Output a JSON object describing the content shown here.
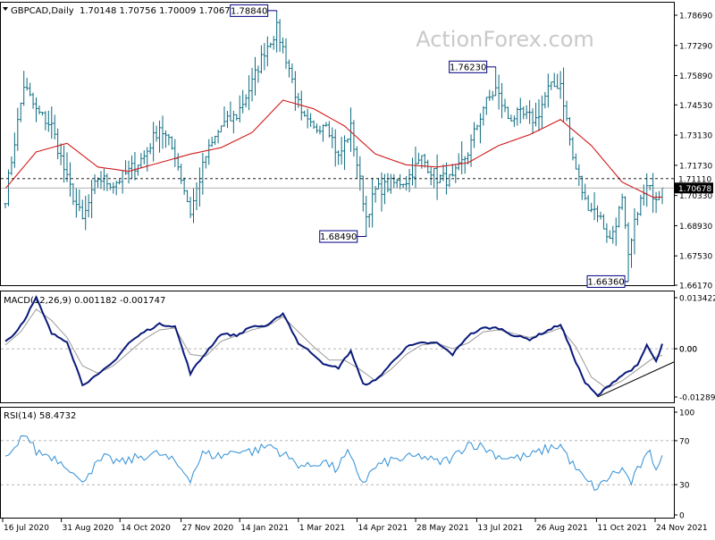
{
  "header": {
    "symbol": "GBPCAD,Daily",
    "ohlc": "1.70148 1.70756 1.70009 1.70678",
    "watermark": "ActionForex.com"
  },
  "colors": {
    "grid_line": "#000000",
    "price_bars": "#0b6b80",
    "moving_average": "#d11a1a",
    "macd_line": "#0a1a7a",
    "macd_signal": "#9a9a9a",
    "rsi_line": "#2f8fd8",
    "label_border": "#000080",
    "current_price_bg": "#000000",
    "current_price_text": "#ffffff",
    "watermark": "#c9c9c9"
  },
  "chart_data": [
    {
      "type": "ohlc",
      "panel": "price",
      "y_axis_ticks": [
        "1.78690",
        "1.77290",
        "1.75890",
        "1.74530",
        "1.73130",
        "1.71730",
        "1.70330",
        "1.68930",
        "1.67530",
        "1.66170"
      ],
      "ylim": [
        1.6617,
        1.7927
      ],
      "price_labels": [
        {
          "name": "high-jan-2021",
          "text": "1.78840",
          "x_index": 88,
          "value": 1.7884
        },
        {
          "name": "low-apr-2021",
          "text": "1.68490",
          "x_index": 117,
          "value": 1.6849
        },
        {
          "name": "high-jul-2021",
          "text": "1.76230",
          "x_index": 159,
          "value": 1.7623
        },
        {
          "name": "low-dec-2021",
          "text": "1.66360",
          "x_index": 202,
          "value": 1.6636
        }
      ],
      "resistance_line": {
        "value": 1.7111,
        "label": "1.71110"
      },
      "current_price": {
        "value": 1.70678,
        "label": "1.70678"
      },
      "moving_average_anchors": [
        [
          0,
          1.7065
        ],
        [
          10,
          1.7235
        ],
        [
          20,
          1.7275
        ],
        [
          30,
          1.7165
        ],
        [
          40,
          1.7145
        ],
        [
          50,
          1.7185
        ],
        [
          60,
          1.7225
        ],
        [
          70,
          1.7255
        ],
        [
          80,
          1.7325
        ],
        [
          90,
          1.7475
        ],
        [
          100,
          1.7435
        ],
        [
          110,
          1.7355
        ],
        [
          120,
          1.7225
        ],
        [
          130,
          1.7175
        ],
        [
          140,
          1.7165
        ],
        [
          150,
          1.7185
        ],
        [
          160,
          1.7265
        ],
        [
          170,
          1.7315
        ],
        [
          180,
          1.7385
        ],
        [
          190,
          1.7265
        ],
        [
          200,
          1.7095
        ],
        [
          210,
          1.7025
        ]
      ],
      "price_anchors": [
        [
          0,
          1.7025
        ],
        [
          6,
          1.7545
        ],
        [
          10,
          1.7425
        ],
        [
          15,
          1.7355
        ],
        [
          20,
          1.7105
        ],
        [
          25,
          1.6915
        ],
        [
          30,
          1.7115
        ],
        [
          35,
          1.7085
        ],
        [
          40,
          1.7145
        ],
        [
          45,
          1.7215
        ],
        [
          50,
          1.7355
        ],
        [
          55,
          1.7225
        ],
        [
          60,
          1.6955
        ],
        [
          65,
          1.7215
        ],
        [
          70,
          1.7355
        ],
        [
          75,
          1.7405
        ],
        [
          80,
          1.7555
        ],
        [
          84,
          1.7705
        ],
        [
          88,
          1.7805
        ],
        [
          92,
          1.7625
        ],
        [
          96,
          1.7395
        ],
        [
          100,
          1.7335
        ],
        [
          104,
          1.7385
        ],
        [
          108,
          1.7205
        ],
        [
          112,
          1.7345
        ],
        [
          117,
          1.6935
        ],
        [
          120,
          1.7055
        ],
        [
          125,
          1.7085
        ],
        [
          130,
          1.7105
        ],
        [
          135,
          1.7205
        ],
        [
          140,
          1.7115
        ],
        [
          145,
          1.7105
        ],
        [
          150,
          1.7235
        ],
        [
          155,
          1.7445
        ],
        [
          159,
          1.7525
        ],
        [
          163,
          1.7395
        ],
        [
          167,
          1.7405
        ],
        [
          172,
          1.7385
        ],
        [
          176,
          1.7525
        ],
        [
          180,
          1.7555
        ],
        [
          184,
          1.7205
        ],
        [
          188,
          1.7005
        ],
        [
          192,
          1.6955
        ],
        [
          196,
          1.6825
        ],
        [
          200,
          1.7005
        ],
        [
          202,
          1.6735
        ],
        [
          205,
          1.6975
        ],
        [
          208,
          1.7065
        ],
        [
          211,
          1.7035
        ],
        [
          213,
          1.7067
        ]
      ]
    },
    {
      "type": "line",
      "panel": "macd",
      "label": "MACD(12,26,9) 0.001182 -0.001747",
      "y_axis_ticks": [
        "0.013422",
        "0.00",
        "0.00",
        "-0.012891"
      ],
      "ylim": [
        -0.0142,
        0.0152
      ],
      "macd_anchors": [
        [
          0,
          0.002
        ],
        [
          3,
          0.004
        ],
        [
          6,
          0.0075
        ],
        [
          10,
          0.0135
        ],
        [
          15,
          0.004
        ],
        [
          20,
          0.002
        ],
        [
          25,
          -0.0095
        ],
        [
          30,
          -0.007
        ],
        [
          35,
          -0.0035
        ],
        [
          40,
          0.0015
        ],
        [
          45,
          0.0045
        ],
        [
          50,
          0.0065
        ],
        [
          55,
          0.006
        ],
        [
          60,
          -0.0065
        ],
        [
          65,
          -0.001
        ],
        [
          70,
          0.004
        ],
        [
          75,
          0.0035
        ],
        [
          80,
          0.006
        ],
        [
          85,
          0.006
        ],
        [
          90,
          0.0095
        ],
        [
          95,
          0.0015
        ],
        [
          100,
          -0.0015
        ],
        [
          104,
          -0.0045
        ],
        [
          108,
          -0.005
        ],
        [
          112,
          -0.0005
        ],
        [
          116,
          -0.0095
        ],
        [
          120,
          -0.0085
        ],
        [
          125,
          -0.004
        ],
        [
          130,
          0.0005
        ],
        [
          135,
          0.0015
        ],
        [
          140,
          0.0015
        ],
        [
          145,
          -0.0015
        ],
        [
          150,
          0.0035
        ],
        [
          155,
          0.0055
        ],
        [
          160,
          0.0055
        ],
        [
          165,
          0.0035
        ],
        [
          170,
          0.0025
        ],
        [
          175,
          0.0045
        ],
        [
          180,
          0.0065
        ],
        [
          185,
          -0.0035
        ],
        [
          188,
          -0.009
        ],
        [
          192,
          -0.0125
        ],
        [
          196,
          -0.0095
        ],
        [
          200,
          -0.007
        ],
        [
          205,
          -0.0045
        ],
        [
          208,
          0.001
        ],
        [
          211,
          -0.0035
        ],
        [
          213,
          0.0012
        ]
      ],
      "signal_anchors": [
        [
          0,
          0.001
        ],
        [
          5,
          0.0045
        ],
        [
          10,
          0.0105
        ],
        [
          15,
          0.0075
        ],
        [
          20,
          0.003
        ],
        [
          25,
          -0.0045
        ],
        [
          30,
          -0.0065
        ],
        [
          35,
          -0.0045
        ],
        [
          40,
          -0.001
        ],
        [
          45,
          0.0025
        ],
        [
          50,
          0.005
        ],
        [
          55,
          0.0055
        ],
        [
          60,
          -0.0015
        ],
        [
          65,
          -0.002
        ],
        [
          70,
          0.002
        ],
        [
          75,
          0.0035
        ],
        [
          80,
          0.005
        ],
        [
          85,
          0.006
        ],
        [
          90,
          0.0085
        ],
        [
          95,
          0.0045
        ],
        [
          100,
          0.0005
        ],
        [
          105,
          -0.003
        ],
        [
          110,
          -0.003
        ],
        [
          115,
          -0.0055
        ],
        [
          120,
          -0.0085
        ],
        [
          125,
          -0.0055
        ],
        [
          130,
          -0.0015
        ],
        [
          135,
          0.001
        ],
        [
          140,
          0.0015
        ],
        [
          145,
          0.0
        ],
        [
          150,
          0.0015
        ],
        [
          155,
          0.0045
        ],
        [
          160,
          0.005
        ],
        [
          165,
          0.004
        ],
        [
          170,
          0.003
        ],
        [
          175,
          0.004
        ],
        [
          180,
          0.0055
        ],
        [
          185,
          0.0005
        ],
        [
          190,
          -0.0075
        ],
        [
          195,
          -0.0105
        ],
        [
          200,
          -0.0085
        ],
        [
          205,
          -0.0055
        ],
        [
          210,
          -0.0025
        ],
        [
          213,
          -0.0017
        ]
      ],
      "trendline": [
        [
          192,
          -0.0128
        ],
        [
          213,
          -0.0035
        ]
      ]
    },
    {
      "type": "line",
      "panel": "rsi",
      "label": "RSI(14) 58.4732",
      "y_axis_ticks": [
        "100",
        "70",
        "30",
        "0"
      ],
      "ylim": [
        0,
        100
      ],
      "levels": [
        70,
        30
      ],
      "rsi_anchors": [
        [
          0,
          52
        ],
        [
          4,
          64
        ],
        [
          6,
          78
        ],
        [
          10,
          60
        ],
        [
          15,
          56
        ],
        [
          20,
          48
        ],
        [
          24,
          32
        ],
        [
          28,
          44
        ],
        [
          32,
          54
        ],
        [
          38,
          50
        ],
        [
          44,
          56
        ],
        [
          50,
          58
        ],
        [
          55,
          50
        ],
        [
          60,
          36
        ],
        [
          64,
          58
        ],
        [
          70,
          56
        ],
        [
          76,
          62
        ],
        [
          80,
          60
        ],
        [
          86,
          66
        ],
        [
          90,
          58
        ],
        [
          94,
          50
        ],
        [
          98,
          46
        ],
        [
          103,
          52
        ],
        [
          107,
          44
        ],
        [
          111,
          58
        ],
        [
          116,
          32
        ],
        [
          120,
          46
        ],
        [
          125,
          52
        ],
        [
          130,
          54
        ],
        [
          135,
          56
        ],
        [
          140,
          50
        ],
        [
          145,
          54
        ],
        [
          150,
          68
        ],
        [
          155,
          64
        ],
        [
          160,
          56
        ],
        [
          165,
          54
        ],
        [
          170,
          56
        ],
        [
          175,
          62
        ],
        [
          180,
          66
        ],
        [
          184,
          48
        ],
        [
          188,
          34
        ],
        [
          192,
          26
        ],
        [
          196,
          38
        ],
        [
          200,
          44
        ],
        [
          203,
          32
        ],
        [
          206,
          48
        ],
        [
          209,
          58
        ],
        [
          211,
          46
        ],
        [
          213,
          58
        ]
      ]
    }
  ],
  "x_axis": {
    "labels": [
      {
        "text": "16 Jul 2020",
        "x_index": 0
      },
      {
        "text": "31 Aug 2020",
        "x_index": 24
      },
      {
        "text": "14 Oct 2020",
        "x_index": 48
      },
      {
        "text": "27 Nov 2020",
        "x_index": 73
      },
      {
        "text": "14 Jan 2021",
        "x_index": 97
      },
      {
        "text": "1 Mar 2021",
        "x_index": 121
      },
      {
        "text": "14 Apr 2021",
        "x_index": 145
      },
      {
        "text": "28 May 2021",
        "x_index": 169
      },
      {
        "text": "13 Jul 2021",
        "x_index": 194
      },
      {
        "text": "26 Aug 2021",
        "x_index": 218
      },
      {
        "text": "11 Oct 2021",
        "x_index": 243
      },
      {
        "text": "24 Nov 2021",
        "x_index": 267
      }
    ]
  }
}
